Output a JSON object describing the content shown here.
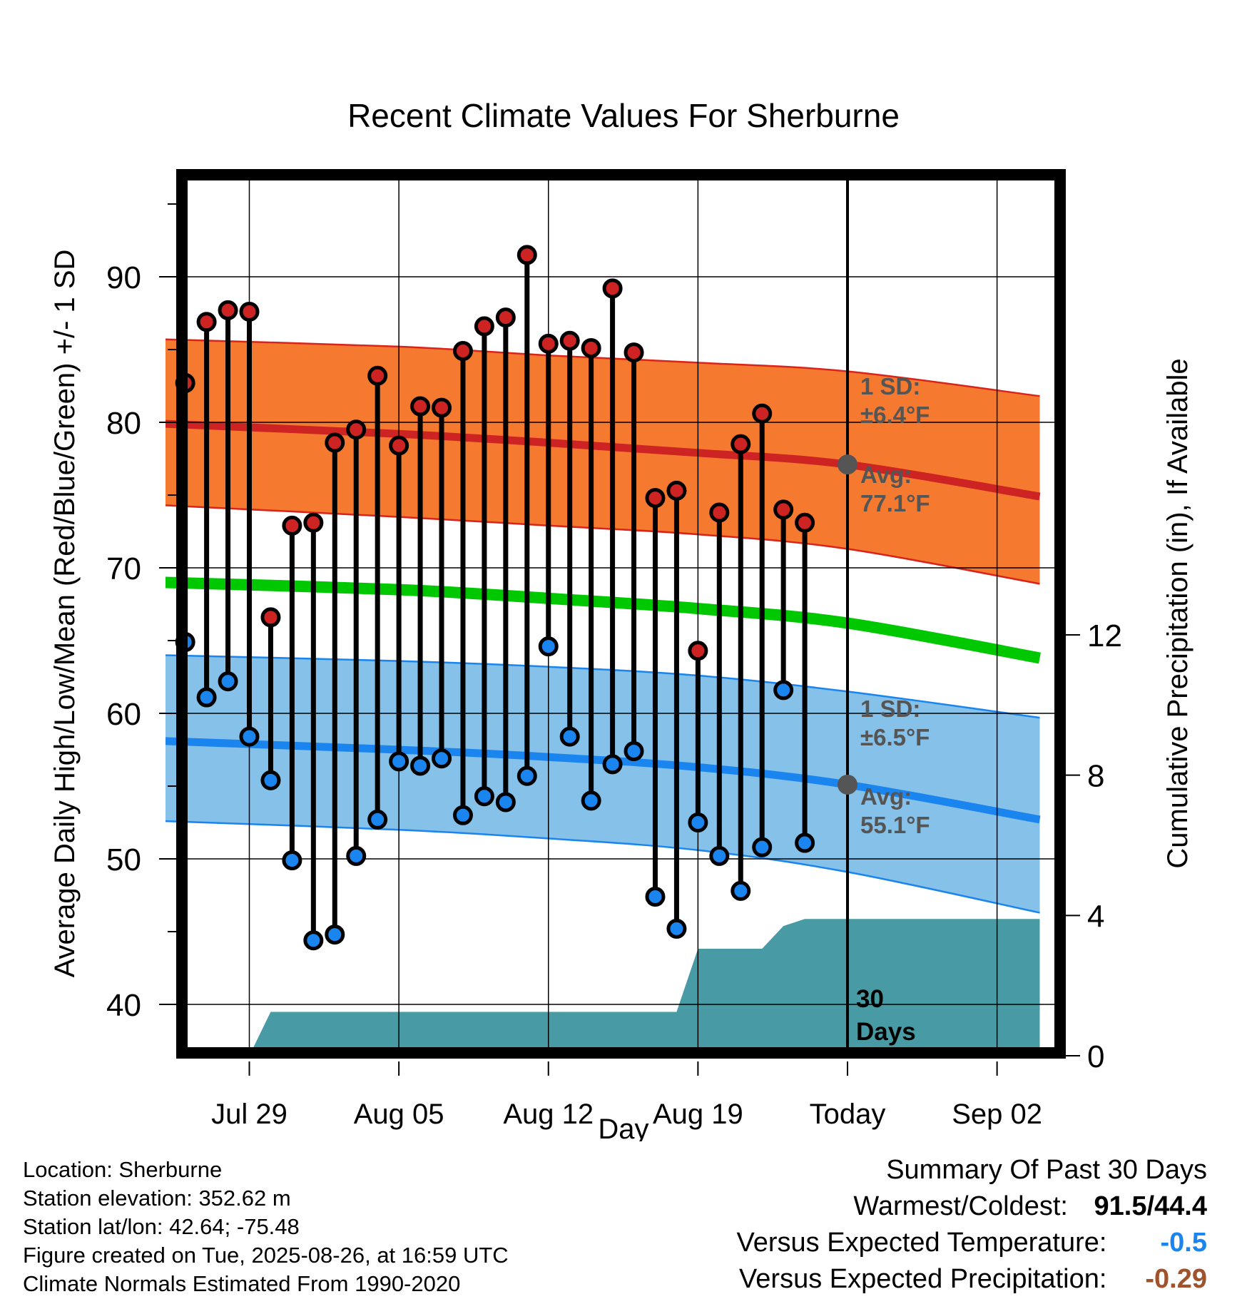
{
  "chart_data": {
    "type": "range-line",
    "title": "Recent Climate Values For Sherburne",
    "xlabel": "Day",
    "ylabel": "Average Daily High/Low/Mean (Red/Blue/Green) +/- 1 SD",
    "y2label": "Cumulative Precipitation (in), If Available",
    "ylim": [
      36.5,
      96
    ],
    "y_ticks": [
      40,
      50,
      60,
      70,
      80,
      90
    ],
    "y2lim": [
      0,
      20
    ],
    "y2_ticks": [
      0,
      4,
      8,
      12
    ],
    "xlim": [
      "2025-07-25",
      "2025-09-04"
    ],
    "x_ticks": [
      {
        "date": "2025-07-29",
        "label": "Jul 29"
      },
      {
        "date": "2025-08-05",
        "label": "Aug 05"
      },
      {
        "date": "2025-08-12",
        "label": "Aug 12"
      },
      {
        "date": "2025-08-19",
        "label": "Aug 19"
      },
      {
        "date": "2025-08-26",
        "label": "Today"
      },
      {
        "date": "2025-09-02",
        "label": "Sep 02"
      }
    ],
    "today": "2025-08-26",
    "today_label": [
      "30",
      "Days"
    ],
    "grid": true,
    "colors": {
      "high_band": "#f57a30",
      "high_band_edge": "#d8241a",
      "high_avg": "#cd2322",
      "low_band": "#85c1e9",
      "low_band_edge": "#1a85ee",
      "low_avg": "#1a85ee",
      "mean": "#00c800",
      "precip": "#489ba4",
      "marker_high": "#cd2322",
      "marker_low": "#1a85ee",
      "today_marker": "#555555",
      "annotation": "#555555"
    },
    "normals": {
      "dates": [
        "2025-07-25",
        "2025-08-05",
        "2025-08-12",
        "2025-08-19",
        "2025-08-26",
        "2025-09-04"
      ],
      "high_avg": [
        79.9,
        79.2,
        78.6,
        77.9,
        77.1,
        74.9
      ],
      "high_upper": [
        85.7,
        85.2,
        84.6,
        84.1,
        83.5,
        81.8
      ],
      "high_lower": [
        74.3,
        73.5,
        72.9,
        72.3,
        71.3,
        68.9
      ],
      "mean": [
        69.0,
        68.5,
        67.9,
        67.2,
        66.2,
        63.8
      ],
      "low_avg": [
        58.1,
        57.5,
        57.0,
        56.3,
        55.1,
        52.7
      ],
      "low_upper": [
        64.0,
        63.6,
        63.2,
        62.6,
        61.5,
        59.7
      ],
      "low_lower": [
        52.6,
        52.0,
        51.4,
        50.6,
        49.1,
        46.3
      ]
    },
    "series": [
      {
        "name": "High",
        "values": [
          82.7,
          86.9,
          87.7,
          87.6,
          66.6,
          72.9,
          73.1,
          78.6,
          79.5,
          83.2,
          78.4,
          81.1,
          81.0,
          84.9,
          86.6,
          87.2,
          91.5,
          85.4,
          85.6,
          85.1,
          89.2,
          84.8,
          74.8,
          75.3,
          64.3,
          73.8,
          78.5,
          80.6,
          74.0,
          73.1
        ]
      },
      {
        "name": "Low",
        "values": [
          64.9,
          61.1,
          62.2,
          58.4,
          55.4,
          49.9,
          44.4,
          44.8,
          50.2,
          52.7,
          56.7,
          56.4,
          56.9,
          53.0,
          54.3,
          53.9,
          55.7,
          64.6,
          58.4,
          54.0,
          56.5,
          57.4,
          47.4,
          45.2,
          52.5,
          50.2,
          47.8,
          50.8,
          61.6,
          51.1
        ]
      }
    ],
    "x": [
      "2025-07-26",
      "2025-07-27",
      "2025-07-28",
      "2025-07-29",
      "2025-07-30",
      "2025-07-31",
      "2025-08-01",
      "2025-08-02",
      "2025-08-03",
      "2025-08-04",
      "2025-08-05",
      "2025-08-06",
      "2025-08-07",
      "2025-08-08",
      "2025-08-09",
      "2025-08-10",
      "2025-08-11",
      "2025-08-12",
      "2025-08-13",
      "2025-08-14",
      "2025-08-15",
      "2025-08-16",
      "2025-08-17",
      "2025-08-18",
      "2025-08-19",
      "2025-08-20",
      "2025-08-21",
      "2025-08-22",
      "2025-08-23",
      "2025-08-24"
    ],
    "precip": {
      "dates": [
        "2025-07-29",
        "2025-07-30",
        "2025-08-18",
        "2025-08-19",
        "2025-08-22",
        "2025-08-23",
        "2025-08-24",
        "2025-09-04"
      ],
      "values": [
        0,
        1.25,
        1.25,
        3.05,
        3.05,
        3.7,
        3.9,
        3.9
      ]
    },
    "annotations": {
      "high": {
        "sd_label": "1 SD:",
        "sd_value": "±6.4°F",
        "avg_label": "Avg:",
        "avg_value": "77.1°F",
        "avg": 77.1
      },
      "low": {
        "sd_label": "1 SD:",
        "sd_value": "±6.5°F",
        "avg_label": "Avg:",
        "avg_value": "55.1°F",
        "avg": 55.1
      }
    }
  },
  "footer": {
    "location": "Location: Sherburne",
    "elevation": "Station elevation: 352.62 m",
    "latlon": "Station lat/lon: 42.64; -75.48",
    "created": "Figure created on Tue, 2025-08-26, at 16:59 UTC",
    "normals": "Climate Normals Estimated From 1990-2020"
  },
  "summary": {
    "heading": "Summary Of Past 30 Days",
    "warmest_label": "Warmest/Coldest:",
    "warmest_value": "91.5/44.4",
    "temp_label": "Versus Expected Temperature:",
    "temp_value": "-0.5",
    "temp_color": "#1a85ee",
    "precip_label": "Versus Expected Precipitation:",
    "precip_value": "-0.29",
    "precip_color": "#a0522d"
  }
}
